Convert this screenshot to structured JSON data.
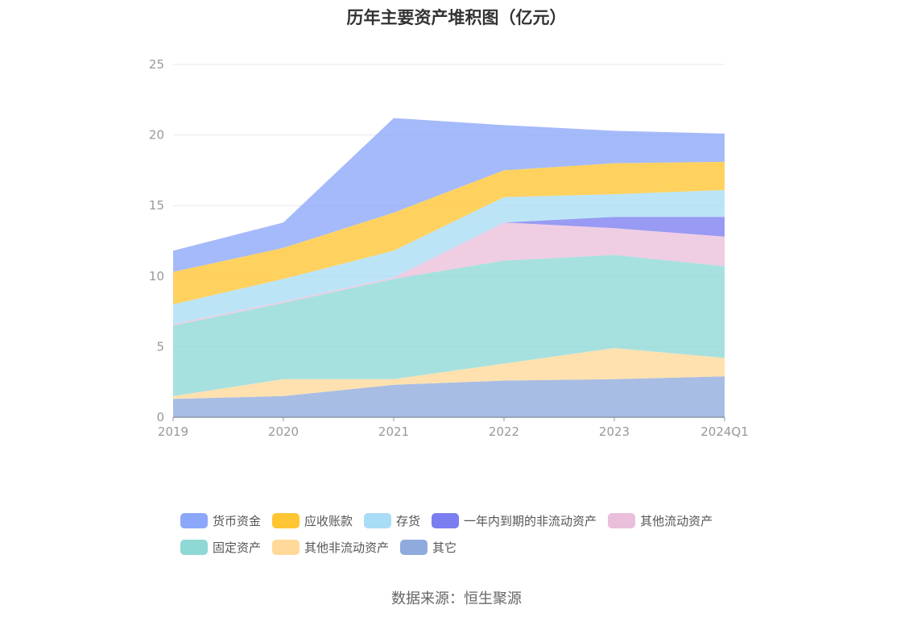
{
  "chart_data": {
    "type": "area",
    "stacked": true,
    "title": "历年主要资产堆积图（亿元）",
    "categories": [
      "2019",
      "2020",
      "2021",
      "2022",
      "2023",
      "2024Q1"
    ],
    "ylim": [
      0,
      25
    ],
    "yticks": [
      0,
      5,
      10,
      15,
      20,
      25
    ],
    "grid": true,
    "legend_position": "bottom",
    "series": [
      {
        "name": "其它",
        "color": "#8faadc",
        "values": [
          1.3,
          1.5,
          2.3,
          2.6,
          2.7,
          2.9
        ]
      },
      {
        "name": "其他非流动资产",
        "color": "#ffd99a",
        "values": [
          0.2,
          1.2,
          0.4,
          1.2,
          2.2,
          1.3
        ]
      },
      {
        "name": "固定资产",
        "color": "#8ed8d6",
        "values": [
          5.0,
          5.4,
          7.1,
          7.3,
          6.6,
          6.5
        ]
      },
      {
        "name": "其他流动资产",
        "color": "#eabfdb",
        "values": [
          0.1,
          0.1,
          0.1,
          2.7,
          1.9,
          2.1
        ]
      },
      {
        "name": "一年内到期的非流动资产",
        "color": "#7b7ef0",
        "values": [
          0,
          0,
          0,
          0,
          0.8,
          1.4
        ]
      },
      {
        "name": "存货",
        "color": "#a9dcf5",
        "values": [
          1.4,
          1.6,
          1.9,
          1.8,
          1.6,
          1.9
        ]
      },
      {
        "name": "应收账款",
        "color": "#ffc533",
        "values": [
          2.3,
          2.2,
          2.7,
          1.9,
          2.2,
          2.0
        ]
      },
      {
        "name": "货币资金",
        "color": "#8ca7f9",
        "values": [
          1.5,
          1.8,
          6.7,
          3.2,
          2.3,
          2.0
        ]
      }
    ]
  },
  "legend": {
    "rows": [
      [
        {
          "label": "货币资金",
          "color": "#8ca7f9"
        },
        {
          "label": "应收账款",
          "color": "#ffc533"
        },
        {
          "label": "存货",
          "color": "#a9dcf5"
        },
        {
          "label": "一年内到期的非流动资产",
          "color": "#7b7ef0"
        },
        {
          "label": "其他流动资产",
          "color": "#eabfdb"
        }
      ],
      [
        {
          "label": "固定资产",
          "color": "#8ed8d6"
        },
        {
          "label": "其他非流动资产",
          "color": "#ffd99a"
        },
        {
          "label": "其它",
          "color": "#8faadc"
        }
      ]
    ]
  },
  "source": "数据来源：恒生聚源"
}
